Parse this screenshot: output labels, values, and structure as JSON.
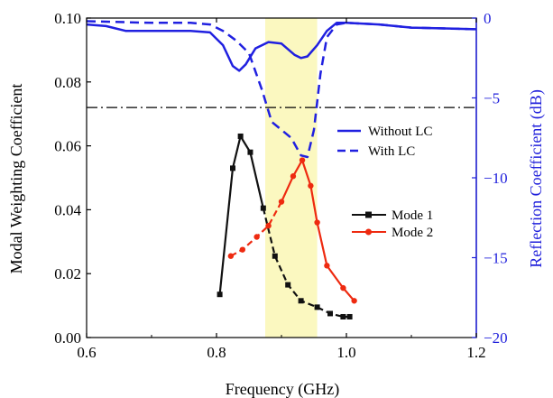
{
  "chart_data": {
    "type": "line",
    "xlabel": "Frequency (GHz)",
    "ylabel_left": "Modal Weighting Coefficient",
    "ylabel_right": "Reflection Coefficient (dB)",
    "xlim": [
      0.6,
      1.2
    ],
    "ylim_left": [
      0.0,
      0.1
    ],
    "ylim_right": [
      -20,
      0
    ],
    "x_ticks": [
      "0.6",
      "0.8",
      "1.0",
      "1.2"
    ],
    "y_left_ticks": [
      "0.00",
      "0.02",
      "0.04",
      "0.06",
      "0.08",
      "0.10"
    ],
    "y_right_ticks": [
      "0",
      "-5",
      "-10",
      "-15",
      "-20"
    ],
    "highlight_band": {
      "x_start": 0.875,
      "x_end": 0.955,
      "color": "#fbf8c0"
    },
    "threshold_line": {
      "axis": "right",
      "y": -5.6,
      "style": "dash-dot"
    },
    "colors": {
      "mode1": "#111111",
      "mode2": "#ee2a10",
      "reflection": "#2020e0",
      "right_axis": "#1f1fdb"
    },
    "legend_left": {
      "position": "middle-right",
      "entries": [
        "Mode 1",
        "Mode 2"
      ]
    },
    "legend_right": {
      "position": "upper-right",
      "entries": [
        "Without LC",
        "With LC"
      ]
    },
    "series": [
      {
        "name": "Mode 1",
        "axis": "left",
        "marker": "square",
        "line": "solid-then-dashed",
        "color": "#111111",
        "x": [
          0.805,
          0.825,
          0.837,
          0.852,
          0.872,
          0.89,
          0.91,
          0.93,
          0.955,
          0.975,
          0.995,
          1.005
        ],
        "y": [
          0.0135,
          0.053,
          0.063,
          0.058,
          0.0405,
          0.0255,
          0.0165,
          0.0115,
          0.0095,
          0.0075,
          0.0065,
          0.0065
        ]
      },
      {
        "name": "Mode 2",
        "axis": "left",
        "marker": "circle",
        "line": "dashed-then-solid",
        "color": "#ee2a10",
        "x": [
          0.822,
          0.84,
          0.862,
          0.88,
          0.9,
          0.918,
          0.932,
          0.945,
          0.955,
          0.97,
          0.995,
          1.012
        ],
        "y": [
          0.0255,
          0.0275,
          0.0315,
          0.035,
          0.0425,
          0.0505,
          0.0555,
          0.0475,
          0.036,
          0.0225,
          0.0155,
          0.0115
        ]
      },
      {
        "name": "Without LC",
        "axis": "right",
        "line": "solid",
        "color": "#2020e0",
        "x": [
          0.6,
          0.63,
          0.66,
          0.7,
          0.76,
          0.79,
          0.81,
          0.825,
          0.835,
          0.845,
          0.86,
          0.88,
          0.9,
          0.92,
          0.93,
          0.94,
          0.955,
          0.97,
          0.985,
          1.0,
          1.05,
          1.1,
          1.2
        ],
        "y": [
          -0.4,
          -0.5,
          -0.8,
          -0.8,
          -0.8,
          -0.9,
          -1.7,
          -3.0,
          -3.3,
          -2.9,
          -1.9,
          -1.5,
          -1.6,
          -2.3,
          -2.5,
          -2.4,
          -1.7,
          -0.8,
          -0.3,
          -0.3,
          -0.4,
          -0.6,
          -0.7
        ]
      },
      {
        "name": "With LC",
        "axis": "right",
        "line": "dashed",
        "color": "#2020e0",
        "x": [
          0.6,
          0.7,
          0.76,
          0.79,
          0.81,
          0.83,
          0.85,
          0.87,
          0.885,
          0.9,
          0.915,
          0.93,
          0.94,
          0.95,
          0.96,
          0.97,
          0.985,
          1.0,
          1.05,
          1.1,
          1.2
        ],
        "y": [
          -0.2,
          -0.3,
          -0.3,
          -0.4,
          -0.8,
          -1.4,
          -2.2,
          -4.5,
          -6.5,
          -7.0,
          -7.5,
          -8.6,
          -8.7,
          -7.0,
          -3.5,
          -1.2,
          -0.4,
          -0.3,
          -0.4,
          -0.6,
          -0.7
        ]
      }
    ]
  }
}
